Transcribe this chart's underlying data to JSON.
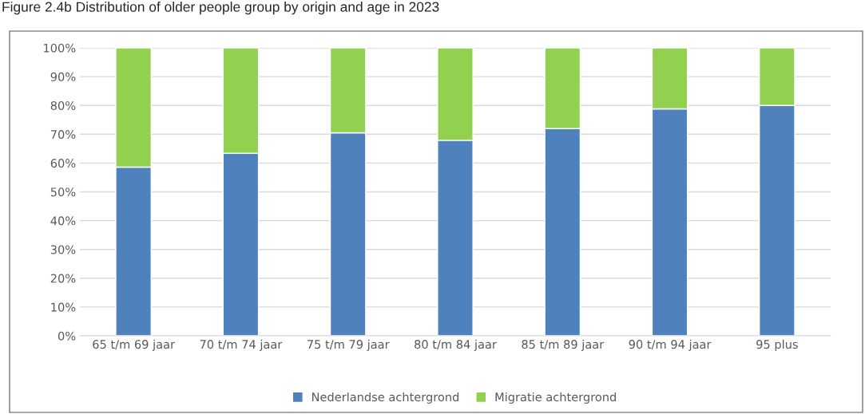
{
  "chart_data": {
    "type": "bar",
    "title": "Figure 2.4b Distribution of older people group by origin and age in 2023",
    "categories": [
      "65 t/m 69 jaar",
      "70 t/m 74 jaar",
      "75 t/m 79 jaar",
      "80 t/m 84 jaar",
      "85 t/m 89 jaar",
      "90 t/m 94 jaar",
      "95 plus"
    ],
    "stacked": true,
    "series": [
      {
        "name": "Nederlandse achtergrond",
        "color": "#4f81bd",
        "values": [
          58.6,
          63.4,
          70.5,
          67.9,
          72.0,
          78.8,
          80.0
        ]
      },
      {
        "name": "Migratie achtergrond",
        "color": "#92d050",
        "values": [
          41.4,
          36.6,
          29.5,
          32.1,
          28.0,
          21.2,
          20.0
        ]
      }
    ],
    "ylim": [
      0,
      100
    ],
    "yticks": [
      {
        "value": 0,
        "label": "0%"
      },
      {
        "value": 10,
        "label": "10%"
      },
      {
        "value": 20,
        "label": "20%"
      },
      {
        "value": 30,
        "label": "30%"
      },
      {
        "value": 40,
        "label": "40%"
      },
      {
        "value": 50,
        "label": "50%"
      },
      {
        "value": 60,
        "label": "60%"
      },
      {
        "value": 70,
        "label": "70%"
      },
      {
        "value": 80,
        "label": "80%"
      },
      {
        "value": 90,
        "label": "90%"
      },
      {
        "value": 100,
        "label": "100%"
      }
    ],
    "grid": "y",
    "legend": "bottom"
  }
}
